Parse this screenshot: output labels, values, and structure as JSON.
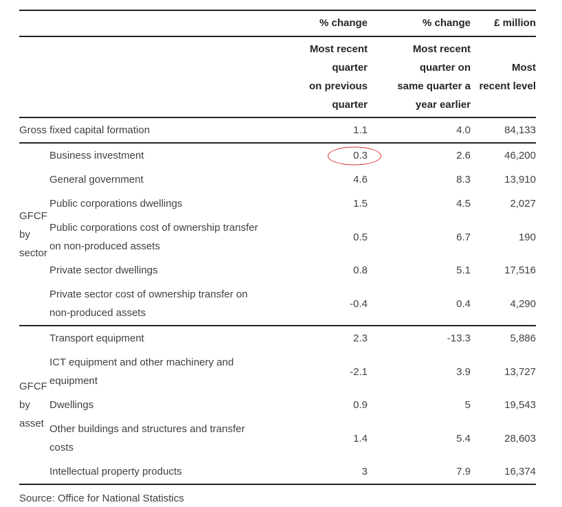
{
  "chart_data": {
    "type": "table",
    "unit_row": [
      "% change",
      "% change",
      "£ million"
    ],
    "column_headers": [
      {
        "lines": [
          "Most recent",
          "quarter",
          "on previous",
          "quarter"
        ]
      },
      {
        "lines": [
          "Most recent",
          "quarter on",
          "same quarter a",
          "year earlier"
        ]
      },
      {
        "lines": [
          "Most",
          "recent level"
        ]
      }
    ],
    "total_row": {
      "label_lines": [
        "Gross fixed capital formation"
      ],
      "values": [
        "1.1",
        "4.0",
        "84,133"
      ]
    },
    "groups": [
      {
        "label": "GFCF by sector",
        "rows": [
          {
            "label_lines": [
              "Business investment"
            ],
            "values": [
              "0.3",
              "2.6",
              "46,200"
            ],
            "annotated": true
          },
          {
            "label_lines": [
              "General government"
            ],
            "values": [
              "4.6",
              "8.3",
              "13,910"
            ]
          },
          {
            "label_lines": [
              "Public corporations dwellings"
            ],
            "values": [
              "1.5",
              "4.5",
              "2,027"
            ]
          },
          {
            "label_lines": [
              "Public corporations cost of ownership transfer",
              "on non-produced assets"
            ],
            "values": [
              "0.5",
              "6.7",
              "190"
            ]
          },
          {
            "label_lines": [
              "Private sector dwellings"
            ],
            "values": [
              "0.8",
              "5.1",
              "17,516"
            ]
          },
          {
            "label_lines": [
              "Private sector cost of ownership transfer on",
              "non-produced assets"
            ],
            "values": [
              "-0.4",
              "0.4",
              "4,290"
            ]
          }
        ]
      },
      {
        "label": "GFCF by asset",
        "rows": [
          {
            "label_lines": [
              "Transport equipment"
            ],
            "values": [
              "2.3",
              "-13.3",
              "5,886"
            ]
          },
          {
            "label_lines": [
              "ICT equipment and other machinery and",
              "equipment"
            ],
            "values": [
              "-2.1",
              "3.9",
              "13,727"
            ]
          },
          {
            "label_lines": [
              "Dwellings"
            ],
            "values": [
              "0.9",
              "5",
              "19,543"
            ]
          },
          {
            "label_lines": [
              "Other buildings and structures and transfer",
              "costs"
            ],
            "values": [
              "1.4",
              "5.4",
              "28,603"
            ]
          },
          {
            "label_lines": [
              "Intellectual property products"
            ],
            "values": [
              "3",
              "7.9",
              "16,374"
            ]
          }
        ]
      }
    ],
    "annotation": {
      "shape": "ellipse",
      "around": "Business investment most recent quarter on previous quarter value",
      "circled_value": "0.3",
      "color": "#d93025"
    },
    "source": "Source: Office for National Statistics"
  }
}
